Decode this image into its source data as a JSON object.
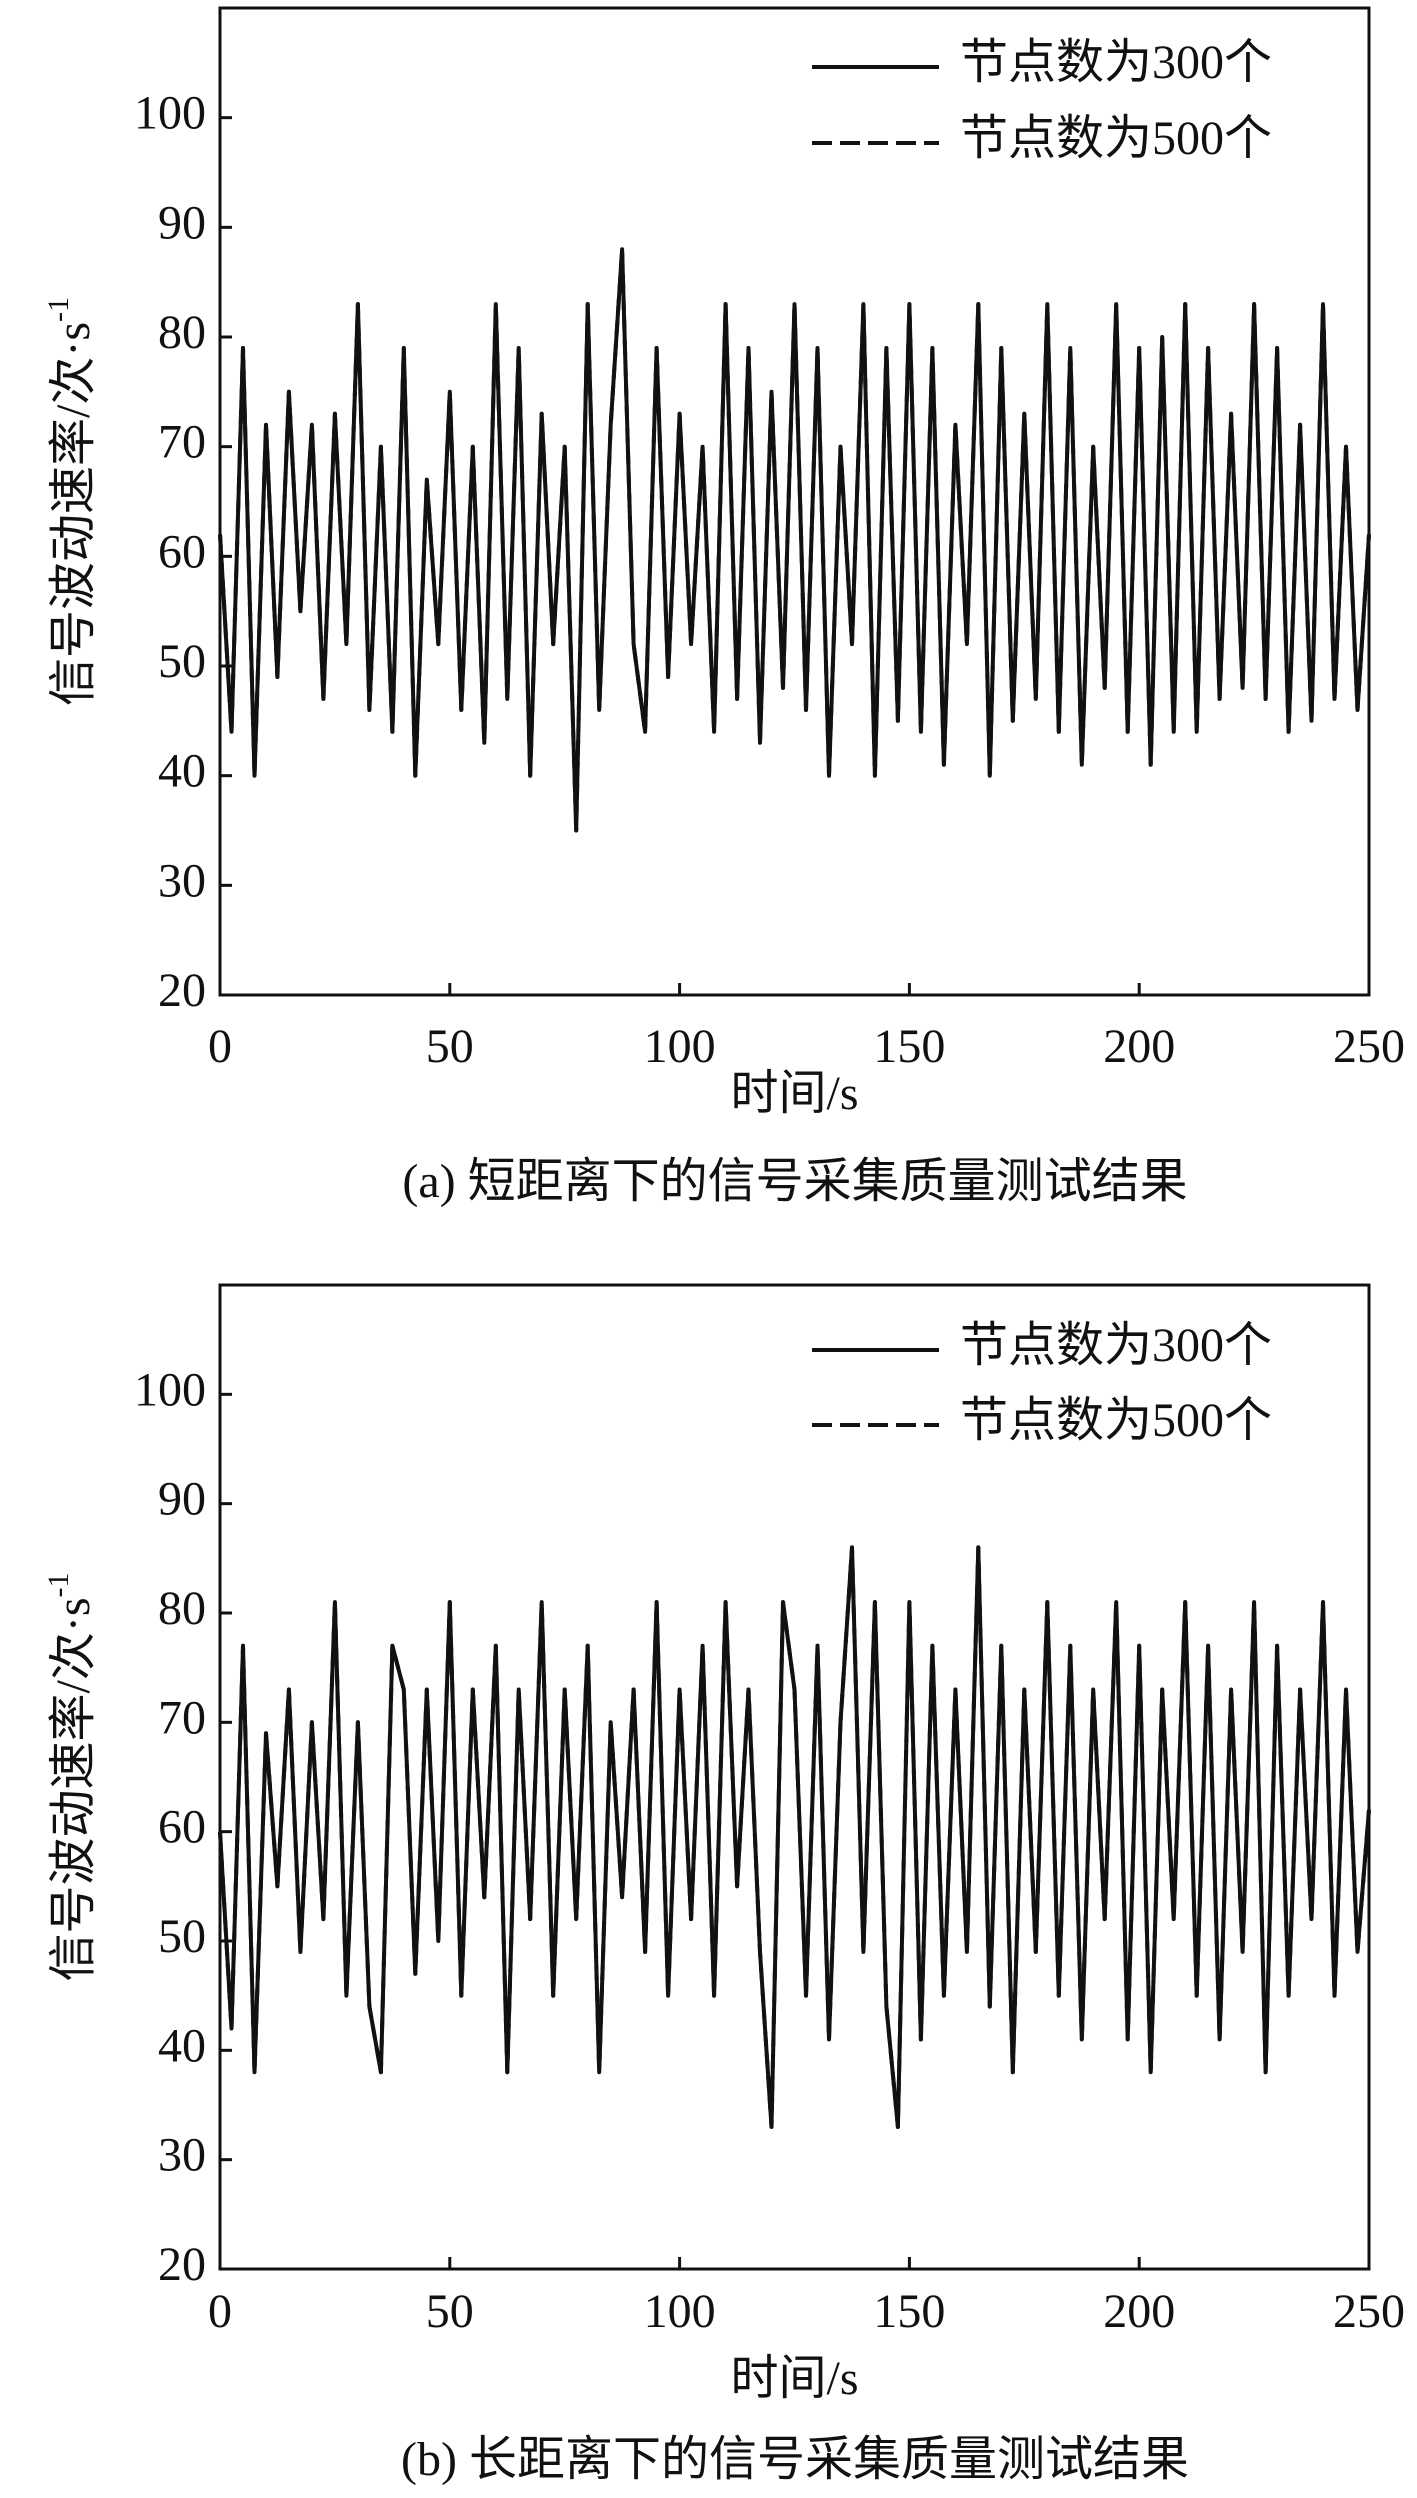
{
  "chart_data": [
    {
      "type": "line",
      "caption": "(a) 短距离下的信号采集质量测试结果",
      "xlabel": "时间/s",
      "ylabel": "信号波动速率/次·s",
      "ylabel_sup": "-1",
      "xlim": [
        0,
        250
      ],
      "xticks": [
        0,
        50,
        100,
        150,
        200,
        250
      ],
      "ylim": [
        20,
        110
      ],
      "yticks": [
        20,
        30,
        40,
        50,
        60,
        70,
        80,
        90,
        100
      ],
      "legend": "upper right",
      "x": [
        0,
        2.5,
        5,
        7.5,
        10,
        12.5,
        15,
        17.5,
        20,
        22.5,
        25,
        27.5,
        30,
        32.5,
        35,
        37.5,
        40,
        42.5,
        45,
        47.5,
        50,
        52.5,
        55,
        57.5,
        60,
        62.5,
        65,
        67.5,
        70,
        72.5,
        75,
        77.5,
        80,
        82.5,
        85,
        87.5,
        90,
        92.5,
        95,
        97.5,
        100,
        102.5,
        105,
        107.5,
        110,
        112.5,
        115,
        117.5,
        120,
        122.5,
        125,
        127.5,
        130,
        132.5,
        135,
        137.5,
        140,
        142.5,
        145,
        147.5,
        150,
        152.5,
        155,
        157.5,
        160,
        162.5,
        165,
        167.5,
        170,
        172.5,
        175,
        177.5,
        180,
        182.5,
        185,
        187.5,
        190,
        192.5,
        195,
        197.5,
        200,
        202.5,
        205,
        207.5,
        210,
        212.5,
        215,
        217.5,
        220,
        222.5,
        225,
        227.5,
        230,
        232.5,
        235,
        237.5,
        240,
        242.5,
        245,
        247.5,
        250
      ],
      "series": [
        {
          "name": "节点数为300个",
          "color": "#111111",
          "dash": false,
          "values": [
            62,
            44,
            79,
            40,
            72,
            49,
            75,
            55,
            72,
            47,
            73,
            52,
            83,
            46,
            70,
            44,
            79,
            40,
            67,
            52,
            75,
            46,
            70,
            43,
            83,
            47,
            79,
            40,
            73,
            52,
            70,
            35,
            83,
            46,
            72,
            88,
            52,
            44,
            79,
            49,
            73,
            52,
            70,
            44,
            83,
            47,
            79,
            43,
            75,
            48,
            83,
            46,
            79,
            40,
            70,
            52,
            83,
            40,
            79,
            45,
            83,
            44,
            79,
            41,
            72,
            52,
            83,
            40,
            79,
            45,
            73,
            47,
            83,
            44,
            79,
            41,
            70,
            48,
            83,
            44,
            79,
            41,
            80,
            44,
            83,
            44,
            79,
            47,
            73,
            48,
            83,
            47,
            79,
            44,
            72,
            45,
            83,
            47,
            70,
            46,
            62
          ]
        },
        {
          "name": "节点数为500个",
          "color": "#111111",
          "dash": true,
          "values": [
            62,
            44,
            79,
            40,
            72,
            49,
            75,
            55,
            72,
            47,
            73,
            52,
            83,
            46,
            70,
            44,
            79,
            40,
            67,
            52,
            75,
            46,
            70,
            43,
            83,
            47,
            79,
            40,
            73,
            52,
            70,
            35,
            83,
            46,
            72,
            88,
            52,
            44,
            79,
            49,
            73,
            52,
            70,
            44,
            83,
            47,
            79,
            43,
            75,
            48,
            83,
            46,
            79,
            40,
            70,
            52,
            83,
            40,
            79,
            45,
            83,
            44,
            79,
            41,
            72,
            52,
            83,
            40,
            79,
            45,
            73,
            47,
            83,
            44,
            79,
            41,
            70,
            48,
            83,
            44,
            79,
            41,
            80,
            44,
            83,
            44,
            79,
            47,
            73,
            48,
            83,
            47,
            79,
            44,
            72,
            45,
            83,
            47,
            70,
            46,
            62
          ]
        }
      ]
    },
    {
      "type": "line",
      "caption": "(b) 长距离下的信号采集质量测试结果",
      "xlabel": "时间/s",
      "ylabel": "信号波动速率/次·s",
      "ylabel_sup": "-1",
      "xlim": [
        0,
        250
      ],
      "xticks": [
        0,
        50,
        100,
        150,
        200,
        250
      ],
      "ylim": [
        20,
        110
      ],
      "yticks": [
        20,
        30,
        40,
        50,
        60,
        70,
        80,
        90,
        100
      ],
      "legend": "upper right",
      "x": [
        0,
        2.5,
        5,
        7.5,
        10,
        12.5,
        15,
        17.5,
        20,
        22.5,
        25,
        27.5,
        30,
        32.5,
        35,
        37.5,
        40,
        42.5,
        45,
        47.5,
        50,
        52.5,
        55,
        57.5,
        60,
        62.5,
        65,
        67.5,
        70,
        72.5,
        75,
        77.5,
        80,
        82.5,
        85,
        87.5,
        90,
        92.5,
        95,
        97.5,
        100,
        102.5,
        105,
        107.5,
        110,
        112.5,
        115,
        117.5,
        120,
        122.5,
        125,
        127.5,
        130,
        132.5,
        135,
        137.5,
        140,
        142.5,
        145,
        147.5,
        150,
        152.5,
        155,
        157.5,
        160,
        162.5,
        165,
        167.5,
        170,
        172.5,
        175,
        177.5,
        180,
        182.5,
        185,
        187.5,
        190,
        192.5,
        195,
        197.5,
        200,
        202.5,
        205,
        207.5,
        210,
        212.5,
        215,
        217.5,
        220,
        222.5,
        225,
        227.5,
        230,
        232.5,
        235,
        237.5,
        240,
        242.5,
        245,
        247.5,
        250
      ],
      "series": [
        {
          "name": "节点数为300个",
          "color": "#111111",
          "dash": false,
          "values": [
            60,
            42,
            77,
            38,
            69,
            55,
            73,
            49,
            70,
            52,
            81,
            45,
            70,
            44,
            38,
            77,
            73,
            47,
            73,
            50,
            81,
            45,
            73,
            54,
            77,
            38,
            73,
            52,
            81,
            45,
            73,
            52,
            77,
            38,
            70,
            54,
            73,
            49,
            81,
            45,
            73,
            52,
            77,
            45,
            81,
            55,
            73,
            49,
            33,
            81,
            73,
            45,
            77,
            41,
            70,
            86,
            49,
            81,
            44,
            33,
            81,
            41,
            77,
            45,
            73,
            49,
            86,
            44,
            77,
            38,
            73,
            49,
            81,
            45,
            77,
            41,
            73,
            52,
            81,
            41,
            77,
            38,
            73,
            52,
            81,
            45,
            77,
            41,
            73,
            49,
            81,
            38,
            77,
            45,
            73,
            52,
            81,
            45,
            73,
            49,
            62
          ]
        },
        {
          "name": "节点数为500个",
          "color": "#111111",
          "dash": true,
          "values": [
            60,
            42,
            77,
            38,
            69,
            55,
            73,
            49,
            70,
            52,
            81,
            45,
            70,
            44,
            38,
            77,
            73,
            47,
            73,
            50,
            81,
            45,
            73,
            54,
            77,
            38,
            73,
            52,
            81,
            45,
            73,
            52,
            77,
            38,
            70,
            54,
            73,
            49,
            81,
            45,
            73,
            52,
            77,
            45,
            81,
            55,
            73,
            49,
            33,
            81,
            73,
            45,
            77,
            41,
            70,
            86,
            49,
            81,
            44,
            33,
            81,
            41,
            77,
            45,
            73,
            49,
            86,
            44,
            77,
            38,
            73,
            49,
            81,
            45,
            77,
            41,
            73,
            52,
            81,
            41,
            77,
            38,
            73,
            52,
            81,
            45,
            77,
            41,
            73,
            49,
            81,
            38,
            77,
            45,
            73,
            52,
            81,
            45,
            73,
            49,
            62
          ]
        }
      ]
    }
  ]
}
